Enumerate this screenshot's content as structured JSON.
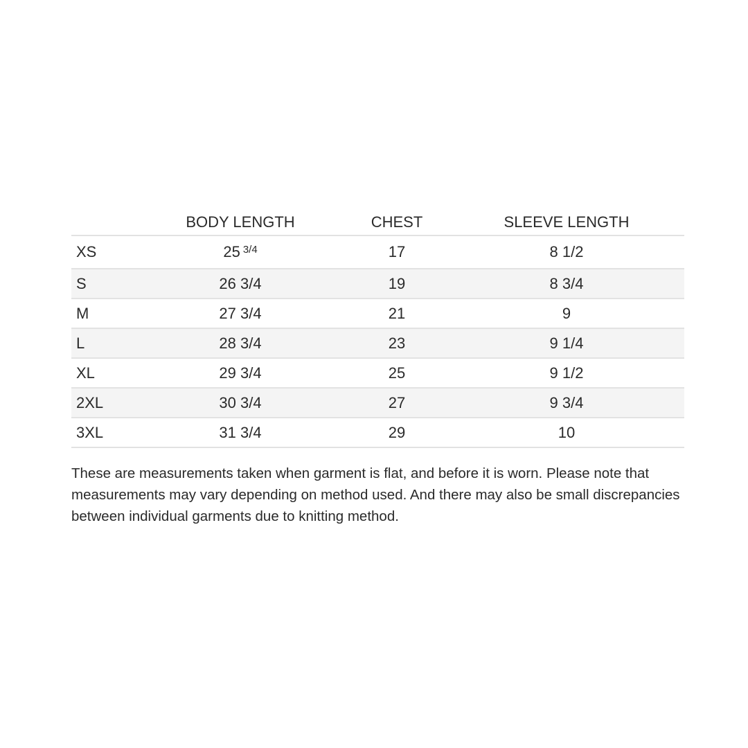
{
  "table": {
    "headers": [
      "",
      "BODY LENGTH",
      "CHEST",
      "SLEEVE LENGTH"
    ],
    "rows": [
      {
        "size": "XS",
        "body": "25",
        "body_sup": "3/4",
        "chest": "17",
        "sleeve": "8 1/2"
      },
      {
        "size": "S",
        "body": "26 3/4",
        "chest": "19",
        "sleeve": "8 3/4"
      },
      {
        "size": "M",
        "body": "27 3/4",
        "chest": "21",
        "sleeve": "9"
      },
      {
        "size": "L",
        "body": "28 3/4",
        "chest": "23",
        "sleeve": "9 1/4"
      },
      {
        "size": "XL",
        "body": "29 3/4",
        "chest": "25",
        "sleeve": "9 1/2"
      },
      {
        "size": "2XL",
        "body": "30 3/4",
        "chest": "27",
        "sleeve": "9 3/4"
      },
      {
        "size": "3XL",
        "body": "31 3/4",
        "chest": "29",
        "sleeve": "10"
      }
    ]
  },
  "note": "These are measurements taken when garment is flat, and before it is worn. Please note that measurements may vary depending on method used. And there may also be small discrepancies between individual garments due to knitting method."
}
